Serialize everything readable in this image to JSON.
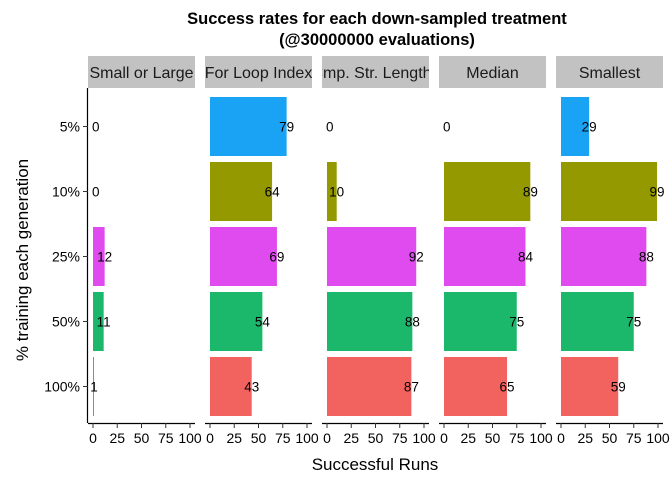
{
  "chart_data": {
    "type": "bar",
    "orientation": "horizontal",
    "title": "Success rates for each down-sampled treatment",
    "subtitle": "(@30000000 evaluations)",
    "xlabel": "Successful Runs",
    "ylabel": "% training each generation",
    "categories": [
      "5%",
      "10%",
      "25%",
      "50%",
      "100%"
    ],
    "xlim": [
      0,
      100
    ],
    "xticks": [
      0,
      25,
      50,
      75,
      100
    ],
    "grid": false,
    "legend": "none",
    "category_colors": {
      "5%": "#1aa3f5",
      "10%": "#959900",
      "25%": "#df4bef",
      "50%": "#1bb86b",
      "100%": "#f2625f"
    },
    "strip_color": "#c2c2c2",
    "panels": [
      {
        "label": "Small or Large",
        "values": [
          0,
          0,
          12,
          11,
          1
        ]
      },
      {
        "label": "For Loop Index",
        "values": [
          79,
          64,
          69,
          54,
          43
        ]
      },
      {
        "label": "Cmp. Str. Lengths",
        "values": [
          0,
          10,
          92,
          88,
          87
        ]
      },
      {
        "label": "Median",
        "values": [
          0,
          89,
          84,
          75,
          65
        ]
      },
      {
        "label": "Smallest",
        "values": [
          29,
          99,
          88,
          75,
          59
        ]
      }
    ]
  }
}
